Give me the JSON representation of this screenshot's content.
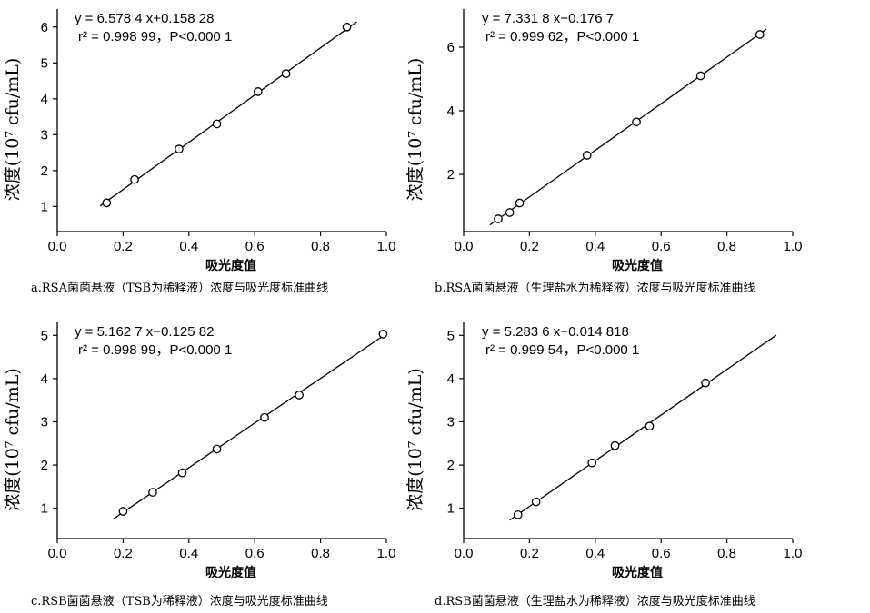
{
  "chart_data": [
    {
      "type": "scatter",
      "caption": "a.RSA菌菌悬液（TSB为稀释液）浓度与吸光度标准曲线",
      "xlabel": "吸光度值",
      "ylabel": "浓度(10⁷ cfu/mL)",
      "xlim": [
        0,
        1.0
      ],
      "ylim": [
        0.3,
        6.5
      ],
      "xticks": [
        "0.0",
        "0.2",
        "0.4",
        "0.6",
        "0.8",
        "1.0"
      ],
      "yticks": [
        "1",
        "2",
        "3",
        "4",
        "5",
        "6"
      ],
      "equation": "y = 6.578 4 x+0.158 28",
      "stats": "r² = 0.998 99，P<0.000 1",
      "points": {
        "x": [
          0.15,
          0.235,
          0.37,
          0.485,
          0.61,
          0.695,
          0.88
        ],
        "y": [
          1.1,
          1.75,
          2.6,
          3.3,
          4.2,
          4.7,
          6.0
        ]
      },
      "fit": {
        "slope": 6.5784,
        "intercept": 0.15828,
        "x_range": [
          0.13,
          0.91
        ]
      }
    },
    {
      "type": "scatter",
      "caption": "b.RSA菌菌悬液（生理盐水为稀释液）浓度与吸光度标准曲线",
      "xlabel": "吸光度值",
      "ylabel": "浓度(10⁷ cfu/mL)",
      "xlim": [
        0,
        1.0
      ],
      "ylim": [
        0.2,
        7.2
      ],
      "xticks": [
        "0.0",
        "0.2",
        "0.4",
        "0.6",
        "0.8",
        "1.0"
      ],
      "yticks": [
        "2",
        "4",
        "6"
      ],
      "equation": "y = 7.331 8 x−0.176 7",
      "stats": "r² = 0.999 62，P<0.000 1",
      "points": {
        "x": [
          0.105,
          0.14,
          0.17,
          0.375,
          0.525,
          0.72,
          0.9
        ],
        "y": [
          0.6,
          0.8,
          1.1,
          2.6,
          3.65,
          5.1,
          6.4
        ]
      },
      "fit": {
        "slope": 7.3318,
        "intercept": -0.1767,
        "x_range": [
          0.08,
          0.92
        ]
      }
    },
    {
      "type": "scatter",
      "caption": "c.RSB菌菌悬液（TSB为稀释液）浓度与吸光度标准曲线",
      "xlabel": "吸光度值",
      "ylabel": "浓度(10⁷ cfu/mL)",
      "xlim": [
        0,
        1.0
      ],
      "ylim": [
        0.3,
        5.3
      ],
      "xticks": [
        "0.0",
        "0.2",
        "0.4",
        "0.6",
        "0.8",
        "1.0"
      ],
      "yticks": [
        "1",
        "2",
        "3",
        "4",
        "5"
      ],
      "equation": "y = 5.162 7 x−0.125 82",
      "stats": "r² = 0.998 99，P<0.000 1",
      "points": {
        "x": [
          0.2,
          0.29,
          0.38,
          0.485,
          0.63,
          0.735,
          0.99
        ],
        "y": [
          0.93,
          1.37,
          1.82,
          2.37,
          3.1,
          3.62,
          5.03
        ]
      },
      "fit": {
        "slope": 5.1627,
        "intercept": -0.12582,
        "x_range": [
          0.17,
          0.99
        ]
      }
    },
    {
      "type": "scatter",
      "caption": "d.RSB菌菌悬液（生理盐水为稀释液）浓度与吸光度标准曲线",
      "xlabel": "吸光度值",
      "ylabel": "浓度(10⁷ cfu/mL)",
      "xlim": [
        0,
        1.0
      ],
      "ylim": [
        0.3,
        5.3
      ],
      "xticks": [
        "0.0",
        "0.2",
        "0.4",
        "0.6",
        "0.8",
        "1.0"
      ],
      "yticks": [
        "1",
        "2",
        "3",
        "4",
        "5"
      ],
      "equation": "y = 5.283 6 x−0.014 818",
      "stats": "r² = 0.999 54，P<0.000 1",
      "points": {
        "x": [
          0.165,
          0.22,
          0.39,
          0.46,
          0.565,
          0.735
        ],
        "y": [
          0.85,
          1.15,
          2.05,
          2.45,
          2.9,
          3.9
        ]
      },
      "fit": {
        "slope": 5.2836,
        "intercept": -0.014818,
        "x_range": [
          0.14,
          0.95
        ]
      }
    }
  ]
}
